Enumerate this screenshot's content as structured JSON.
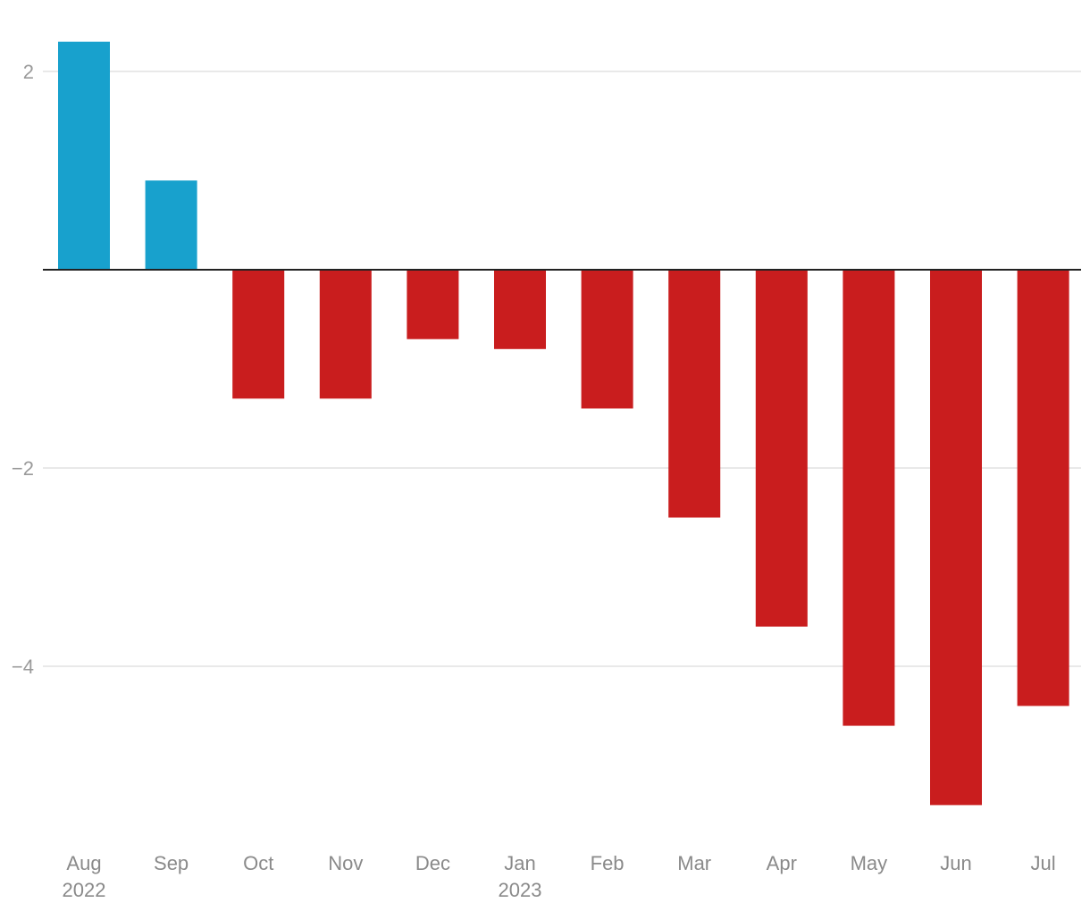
{
  "chart_data": {
    "type": "bar",
    "categories": [
      {
        "month": "Aug",
        "year": "2022"
      },
      {
        "month": "Sep",
        "year": ""
      },
      {
        "month": "Oct",
        "year": ""
      },
      {
        "month": "Nov",
        "year": ""
      },
      {
        "month": "Dec",
        "year": ""
      },
      {
        "month": "Jan",
        "year": "2023"
      },
      {
        "month": "Feb",
        "year": ""
      },
      {
        "month": "Mar",
        "year": ""
      },
      {
        "month": "Apr",
        "year": ""
      },
      {
        "month": "May",
        "year": ""
      },
      {
        "month": "Jun",
        "year": ""
      },
      {
        "month": "Jul",
        "year": ""
      }
    ],
    "values": [
      2.3,
      0.9,
      -1.3,
      -1.3,
      -0.7,
      -0.8,
      -1.4,
      -2.5,
      -3.6,
      -4.6,
      -5.4,
      -4.4
    ],
    "title": "",
    "xlabel": "",
    "ylabel": "",
    "ylim": [
      -5.75,
      2.45
    ],
    "yticks": [
      {
        "value": 2,
        "label": "2"
      },
      {
        "value": -2,
        "label": "−2"
      },
      {
        "value": -4,
        "label": "−4"
      }
    ],
    "grid": true,
    "colors": {
      "positive": "#18a1cd",
      "negative": "#c91d1e",
      "grid": "#e2e2e2",
      "zero_line": "#222222"
    }
  }
}
